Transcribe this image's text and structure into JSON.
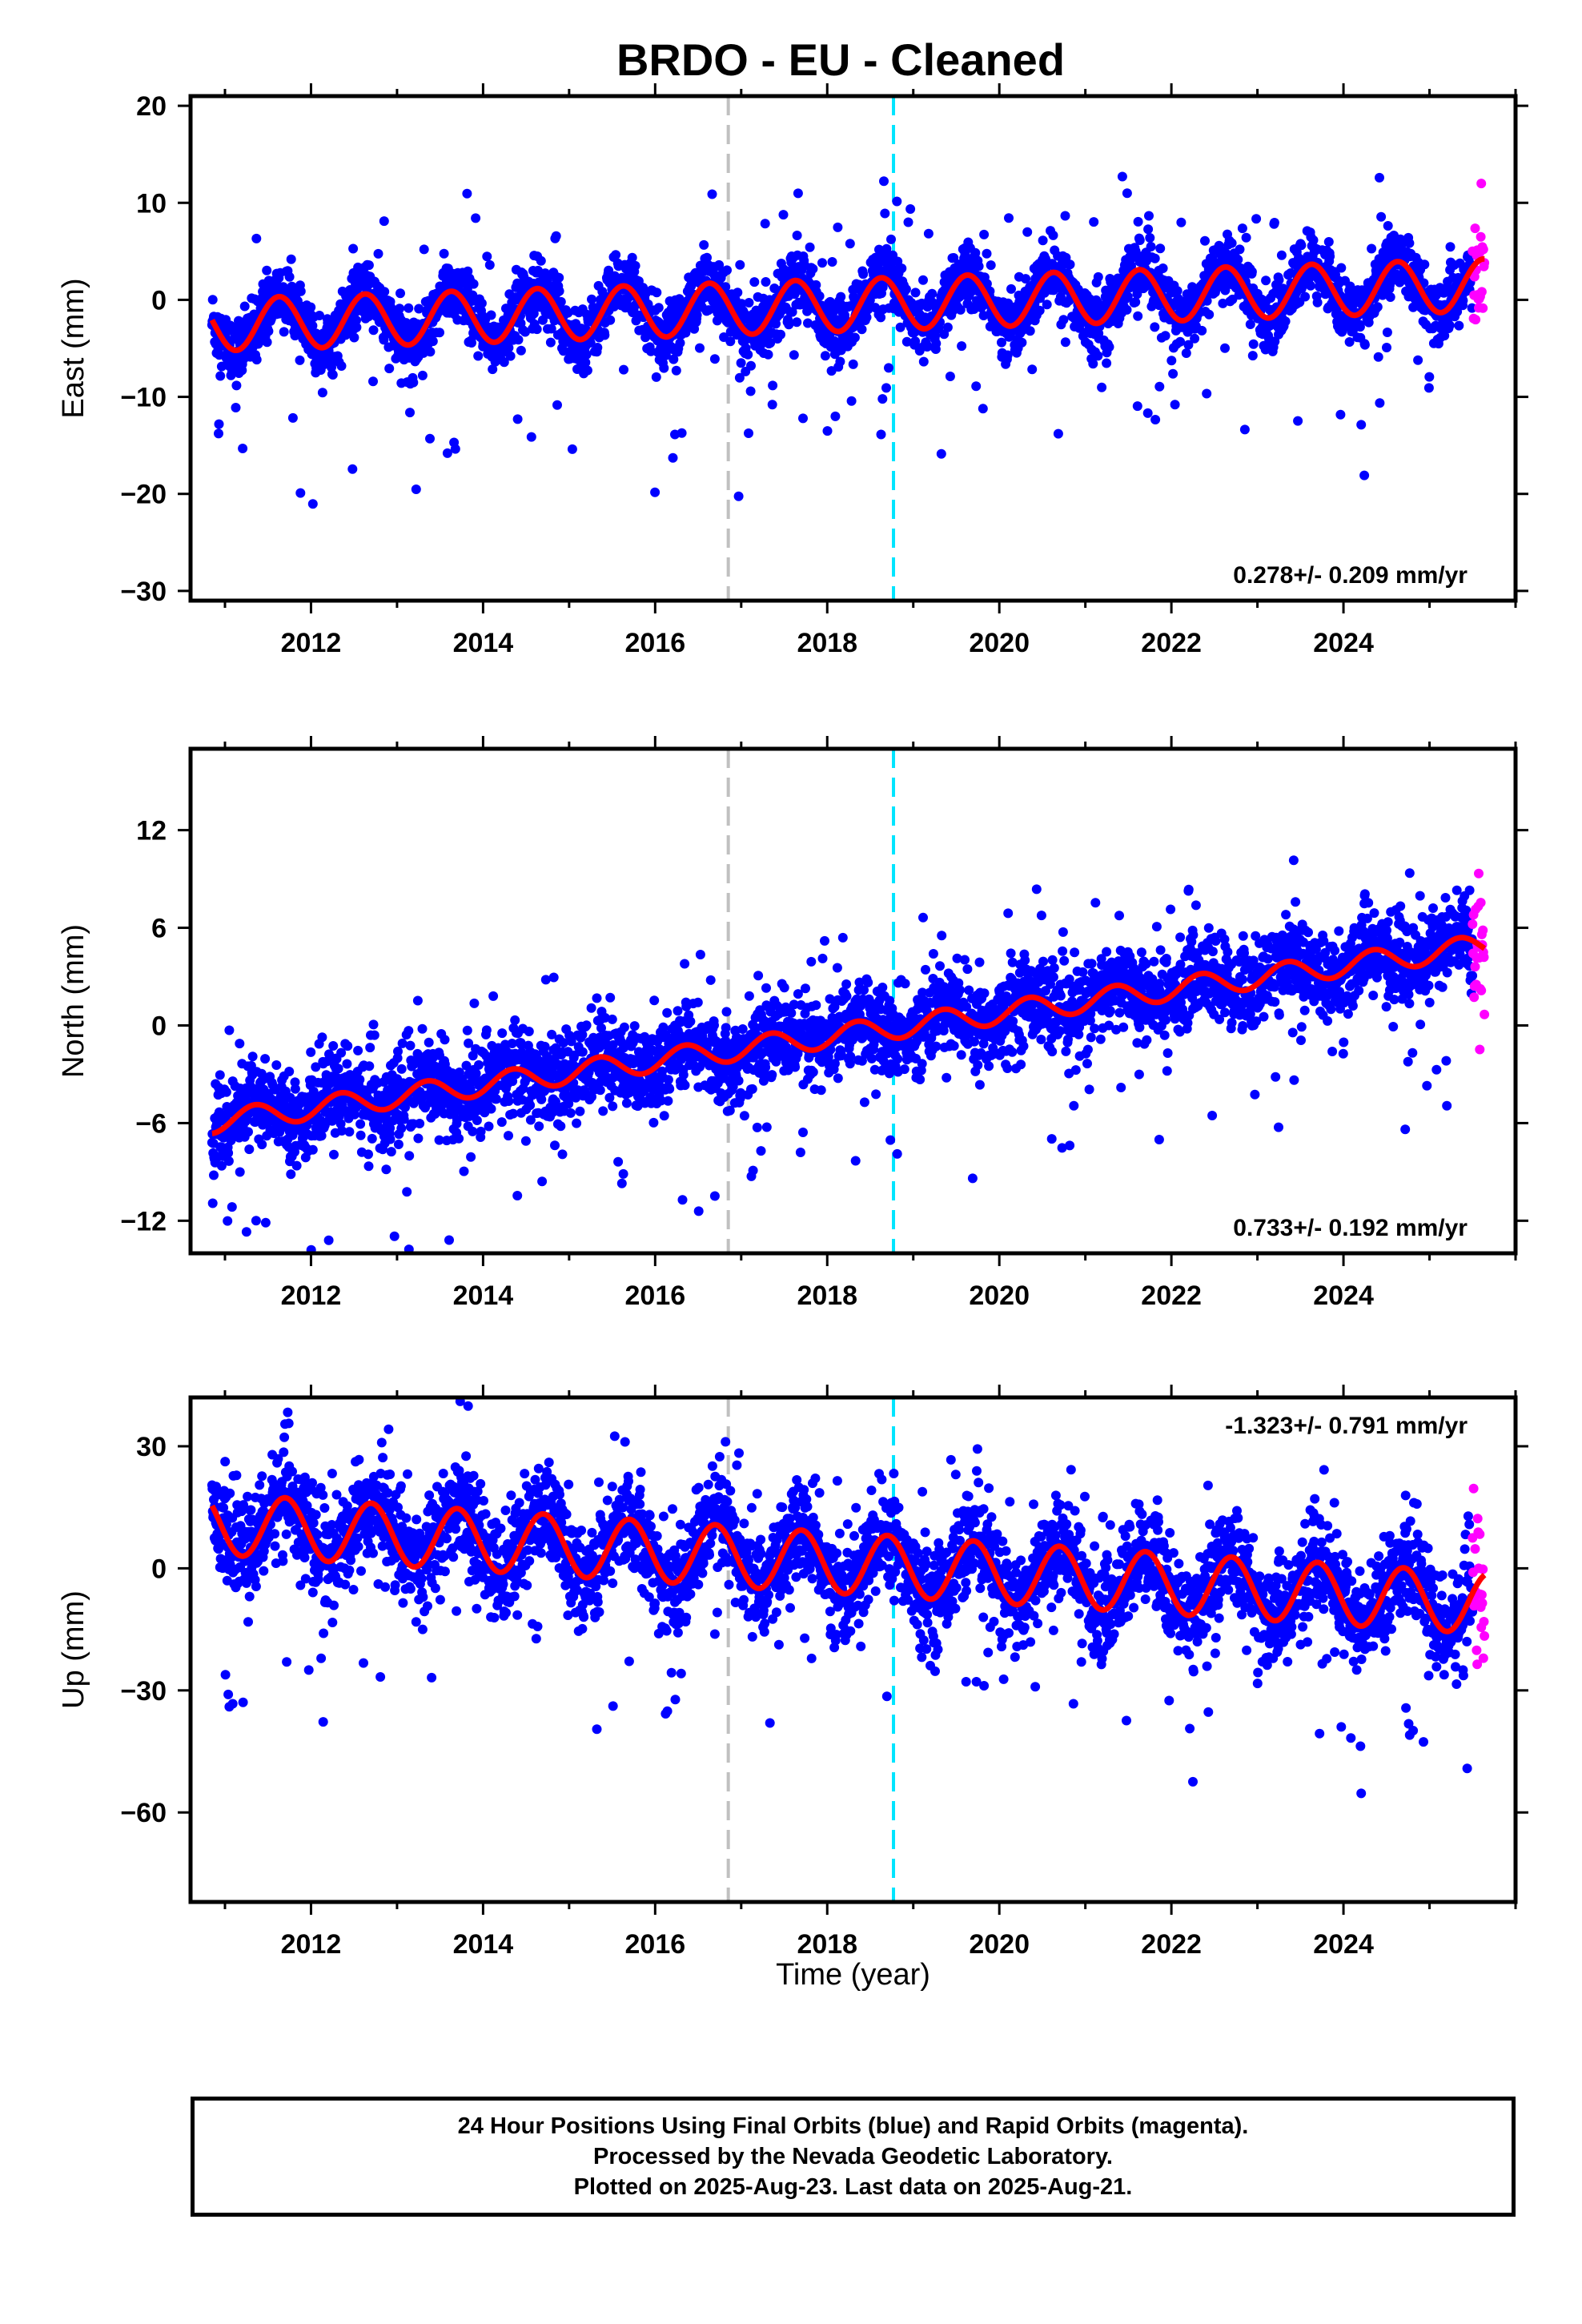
{
  "figure": {
    "title": "BRDO  - EU - Cleaned",
    "xlabel": "Time (year)",
    "footer": [
      "24 Hour Positions Using Final Orbits (blue) and Rapid Orbits (magenta).",
      "Processed by the Nevada Geodetic Laboratory.",
      "Plotted on 2025-Aug-23. Last data on 2025-Aug-21."
    ]
  },
  "colors": {
    "final_orbits": "#0000ff",
    "rapid_orbits": "#ff00ff",
    "model_fit": "#ff0000",
    "equipment_change_line": "#c0c0c0",
    "event_line": "#00e5ff"
  },
  "chart_data": [
    {
      "type": "scatter",
      "component": "East",
      "ylabel": "East (mm)",
      "rate_text": "0.278+/- 0.209 mm/yr",
      "rate_position": "bottom-right",
      "xlim": [
        2010.6,
        2026.0
      ],
      "ylim": [
        -31,
        21
      ],
      "xticks": [
        2012,
        2014,
        2016,
        2018,
        2020,
        2022,
        2024
      ],
      "yticks": [
        -30,
        -20,
        -10,
        0,
        10,
        20
      ],
      "x_start": 2010.85,
      "x_end": 2025.5,
      "rapid_start": 2025.5,
      "rapid_end": 2025.64,
      "offset": -0.6,
      "trend": 0.278,
      "annual_amplitude": 2.7,
      "annual_phase": 0.38,
      "scatter": 1.6,
      "outlier_range": [
        -30,
        20
      ],
      "vlines": [
        2016.85,
        2018.77
      ],
      "grid": false,
      "legend": "none"
    },
    {
      "type": "scatter",
      "component": "North",
      "ylabel": "North (mm)",
      "rate_text": "0.733+/- 0.192 mm/yr",
      "rate_position": "bottom-right",
      "xlim": [
        2010.6,
        2026.0
      ],
      "ylim": [
        -14,
        17
      ],
      "xticks": [
        2012,
        2014,
        2016,
        2018,
        2020,
        2022,
        2024
      ],
      "yticks": [
        -12,
        -6,
        0,
        6,
        12
      ],
      "x_start": 2010.85,
      "x_end": 2025.5,
      "rapid_start": 2025.5,
      "rapid_end": 2025.64,
      "offset": -0.7,
      "trend": 0.733,
      "annual_amplitude": 0.7,
      "annual_phase": 0.1,
      "scatter": 1.3,
      "outlier_range": [
        -13,
        16
      ],
      "vlines": [
        2016.85,
        2018.77
      ],
      "grid": false,
      "legend": "none"
    },
    {
      "type": "scatter",
      "component": "Up",
      "ylabel": "Up (mm)",
      "rate_text": "-1.323+/- 0.791 mm/yr",
      "rate_position": "top-right",
      "xlim": [
        2010.6,
        2026.0
      ],
      "ylim": [
        -82,
        42
      ],
      "xticks": [
        2012,
        2014,
        2016,
        2018,
        2020,
        2022,
        2024
      ],
      "yticks": [
        -60,
        -30,
        0,
        30
      ],
      "x_start": 2010.85,
      "x_end": 2025.5,
      "rapid_start": 2025.5,
      "rapid_end": 2025.64,
      "offset": 1.5,
      "trend": -1.323,
      "annual_amplitude": 7.5,
      "annual_phase": 0.45,
      "scatter": 6,
      "outlier_range": [
        -80,
        40
      ],
      "vlines": [
        2016.85,
        2018.77
      ],
      "grid": false,
      "legend": "none"
    }
  ]
}
